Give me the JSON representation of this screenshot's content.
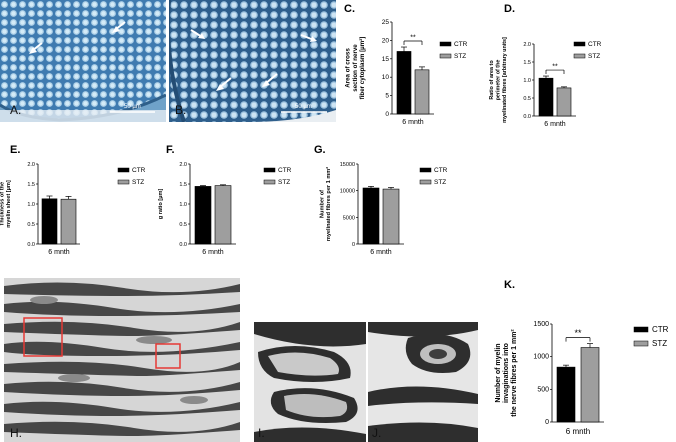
{
  "figure": {
    "photos": {
      "A": {
        "letter": "A.",
        "scalebar": "50 µm"
      },
      "B": {
        "letter": "B.",
        "scalebar": "50 µm"
      },
      "H": {
        "letter": "H."
      },
      "I": {
        "letter": "I."
      },
      "J": {
        "letter": "J."
      }
    },
    "colors": {
      "ctr": "#000000",
      "stz": "#9e9e9e",
      "tissue_blue": "#5b8db5",
      "em_dark": "#3a3a3a",
      "em_light": "#d8d8d8",
      "roi_box": "#e53935"
    }
  },
  "chart_data": [
    {
      "id": "C",
      "letter": "C.",
      "type": "bar",
      "ylabel": "Area of cross section of nerve fiber cytoplasm [µm²]",
      "categories": [
        "6 mnth"
      ],
      "series": [
        {
          "name": "CTR",
          "values": [
            17
          ]
        },
        {
          "name": "STZ",
          "values": [
            12
          ]
        }
      ],
      "errors": [
        1.2,
        0.8
      ],
      "ylim": [
        0,
        25
      ],
      "yticks": [
        "0",
        "5",
        "10",
        "15",
        "20",
        "25"
      ],
      "significance": "**",
      "legend": [
        "CTR",
        "STZ"
      ]
    },
    {
      "id": "D",
      "letter": "D.",
      "type": "bar",
      "ylabel": "Ratio of area to perimeter of the myelinated fibres [arbitrary units]",
      "categories": [
        "6 mnth"
      ],
      "series": [
        {
          "name": "CTR",
          "values": [
            1.05
          ]
        },
        {
          "name": "STZ",
          "values": [
            0.78
          ]
        }
      ],
      "errors": [
        0.06,
        0.03
      ],
      "ylim": [
        0,
        2.0
      ],
      "yticks": [
        "0.0",
        "0.5",
        "1.0",
        "1.5",
        "2.0"
      ],
      "significance": "**",
      "legend": [
        "CTR",
        "STZ"
      ]
    },
    {
      "id": "E",
      "letter": "E.",
      "type": "bar",
      "ylabel": "Thickness of the myelin sheet [µm]",
      "categories": [
        "6 mnth"
      ],
      "series": [
        {
          "name": "CTR",
          "values": [
            1.13
          ]
        },
        {
          "name": "STZ",
          "values": [
            1.12
          ]
        }
      ],
      "errors": [
        0.07,
        0.07
      ],
      "ylim": [
        0,
        2.0
      ],
      "yticks": [
        "0.0",
        "0.5",
        "1.0",
        "1.5",
        "2.0"
      ],
      "significance": "",
      "legend": [
        "CTR",
        "STZ"
      ]
    },
    {
      "id": "F",
      "letter": "F.",
      "type": "bar",
      "ylabel": "g ratio [µm]",
      "categories": [
        "6 mnth"
      ],
      "series": [
        {
          "name": "CTR",
          "values": [
            1.44
          ]
        },
        {
          "name": "STZ",
          "values": [
            1.46
          ]
        }
      ],
      "errors": [
        0.02,
        0.02
      ],
      "ylim": [
        0,
        2.0
      ],
      "yticks": [
        "0.0",
        "0.5",
        "1.0",
        "1.5",
        "2.0"
      ],
      "significance": "",
      "legend": [
        "CTR",
        "STZ"
      ]
    },
    {
      "id": "G",
      "letter": "G.",
      "type": "bar",
      "ylabel": "Number of myelinated fibres per 1 mm²",
      "categories": [
        "6 mnth"
      ],
      "series": [
        {
          "name": "CTR",
          "values": [
            10500
          ]
        },
        {
          "name": "STZ",
          "values": [
            10300
          ]
        }
      ],
      "errors": [
        300,
        300
      ],
      "ylim": [
        0,
        15000
      ],
      "yticks": [
        "0",
        "5000",
        "10000",
        "15000"
      ],
      "significance": "",
      "legend": [
        "CTR",
        "STZ"
      ]
    },
    {
      "id": "K",
      "letter": "K.",
      "type": "bar",
      "ylabel": "Number of myelin invaginations into the nerve fibres per 1 mm²",
      "categories": [
        "6 mnth"
      ],
      "series": [
        {
          "name": "CTR",
          "values": [
            840
          ]
        },
        {
          "name": "STZ",
          "values": [
            1140
          ]
        }
      ],
      "errors": [
        30,
        60
      ],
      "ylim": [
        0,
        1500
      ],
      "yticks": [
        "0",
        "500",
        "1000",
        "1500"
      ],
      "significance": "**",
      "legend": [
        "CTR",
        "STZ"
      ]
    }
  ]
}
